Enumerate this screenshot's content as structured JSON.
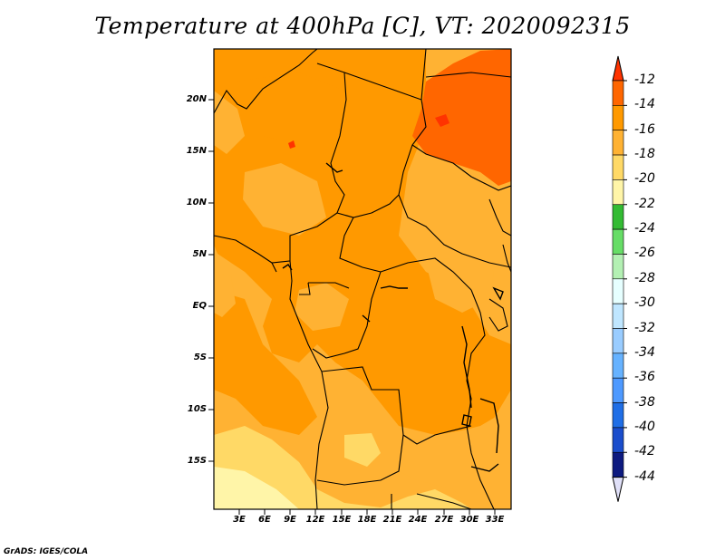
{
  "title": "Temperature at 400hPa [C], VT: 2020092315",
  "credit": "GrADS: IGES/COLA",
  "map": {
    "region": "Central Africa",
    "y_labels": [
      "20N",
      "15N",
      "10N",
      "5N",
      "EQ",
      "5S",
      "10S",
      "15S"
    ],
    "x_labels": [
      "3E",
      "6E",
      "9E",
      "12E",
      "15E",
      "18E",
      "21E",
      "24E",
      "27E",
      "30E",
      "33E"
    ]
  },
  "colorbar": {
    "labels": [
      "-12",
      "-14",
      "-16",
      "-18",
      "-20",
      "-22",
      "-24",
      "-26",
      "-28",
      "-30",
      "-32",
      "-34",
      "-36",
      "-38",
      "-40",
      "-42",
      "-44"
    ],
    "colors": [
      "#ff3300",
      "#ff6600",
      "#ff9900",
      "#ffb233",
      "#ffd966",
      "#fff5a8",
      "#33bb33",
      "#66dd66",
      "#b3f0b3",
      "#e6ffff",
      "#bfe6ff",
      "#99ccff",
      "#66b2ff",
      "#4d99ff",
      "#1f6ee6",
      "#1a4dcc",
      "#0d1a80",
      "#e0e0f8"
    ]
  }
}
